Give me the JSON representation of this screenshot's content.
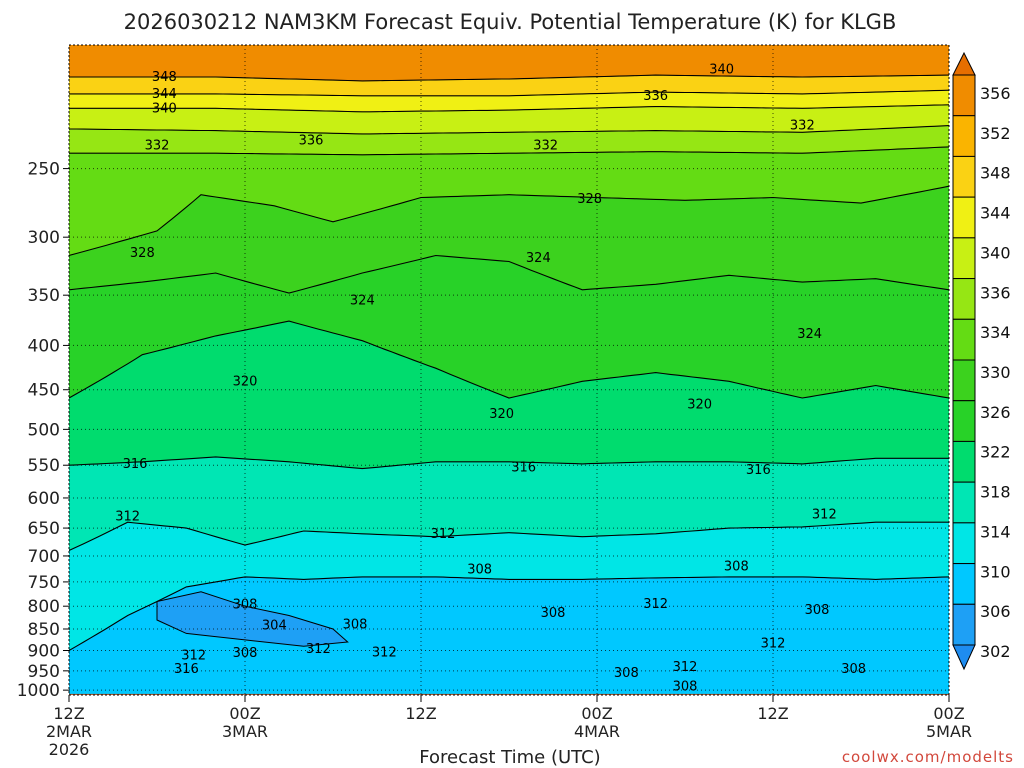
{
  "chart_data": {
    "type": "heatmap",
    "title": "2026030212 NAM3KM Forecast Equiv. Potential Temperature (K) for KLGB",
    "xlabel": "Forecast Time (UTC)",
    "ylabel": "",
    "y_scale": "log-pressure",
    "y_inverted": true,
    "ylim": [
      1000,
      180
    ],
    "x_ticks": [
      {
        "hour": 0,
        "lines": [
          "12Z",
          "2MAR",
          "2026"
        ]
      },
      {
        "hour": 12,
        "lines": [
          "00Z",
          "3MAR"
        ]
      },
      {
        "hour": 24,
        "lines": [
          "12Z"
        ]
      },
      {
        "hour": 36,
        "lines": [
          "00Z",
          "4MAR"
        ]
      },
      {
        "hour": 48,
        "lines": [
          "12Z"
        ]
      },
      {
        "hour": 60,
        "lines": [
          "00Z",
          "5MAR"
        ]
      }
    ],
    "xlim": [
      0,
      60
    ],
    "y_ticks": [
      250,
      300,
      350,
      400,
      450,
      500,
      550,
      600,
      650,
      700,
      750,
      800,
      850,
      900,
      950,
      1000
    ],
    "grid": true,
    "colorbar": {
      "levels": [
        302,
        306,
        310,
        314,
        318,
        322,
        326,
        330,
        334,
        336,
        340,
        344,
        348,
        352,
        356
      ],
      "colors": [
        "#1e8cf0",
        "#1ea0f5",
        "#00c8ff",
        "#00e6e6",
        "#00e6b4",
        "#00dc6e",
        "#28d228",
        "#3cd21e",
        "#64dc14",
        "#96e614",
        "#c8f014",
        "#f0f014",
        "#fad214",
        "#fab400",
        "#f08c00",
        "#e66e00"
      ]
    },
    "series": [
      {
        "value": 348,
        "points": [
          [
            0,
            196
          ],
          [
            10,
            196
          ],
          [
            20,
            198
          ],
          [
            30,
            197
          ],
          [
            40,
            195
          ],
          [
            50,
            196
          ],
          [
            60,
            195
          ]
        ]
      },
      {
        "value": 344,
        "points": [
          [
            0,
            205
          ],
          [
            10,
            205
          ],
          [
            20,
            206
          ],
          [
            30,
            206
          ],
          [
            40,
            204
          ],
          [
            50,
            205
          ],
          [
            60,
            203
          ]
        ]
      },
      {
        "value": 340,
        "points": [
          [
            0,
            213
          ],
          [
            10,
            213
          ],
          [
            20,
            215
          ],
          [
            30,
            214
          ],
          [
            40,
            212
          ],
          [
            50,
            213
          ],
          [
            60,
            211
          ]
        ]
      },
      {
        "value": 336,
        "points": [
          [
            0,
            225
          ],
          [
            10,
            226
          ],
          [
            20,
            228
          ],
          [
            30,
            227
          ],
          [
            40,
            226
          ],
          [
            50,
            227
          ],
          [
            60,
            223
          ]
        ]
      },
      {
        "value": 332,
        "points": [
          [
            0,
            240
          ],
          [
            10,
            240
          ],
          [
            20,
            241
          ],
          [
            30,
            240
          ],
          [
            40,
            239
          ],
          [
            50,
            240
          ],
          [
            60,
            236
          ]
        ]
      },
      {
        "value": 328,
        "points": [
          [
            0,
            315
          ],
          [
            6,
            295
          ],
          [
            9,
            268
          ],
          [
            14,
            276
          ],
          [
            18,
            288
          ],
          [
            24,
            270
          ],
          [
            30,
            268
          ],
          [
            36,
            270
          ],
          [
            42,
            272
          ],
          [
            48,
            270
          ],
          [
            54,
            274
          ],
          [
            60,
            262
          ]
        ]
      },
      {
        "value": 324,
        "points": [
          [
            0,
            345
          ],
          [
            5,
            338
          ],
          [
            10,
            330
          ],
          [
            15,
            348
          ],
          [
            20,
            330
          ],
          [
            25,
            315
          ],
          [
            30,
            320
          ],
          [
            35,
            345
          ],
          [
            40,
            340
          ],
          [
            45,
            332
          ],
          [
            50,
            338
          ],
          [
            55,
            335
          ],
          [
            60,
            345
          ]
        ]
      },
      {
        "value": 320,
        "points": [
          [
            0,
            460
          ],
          [
            5,
            410
          ],
          [
            10,
            390
          ],
          [
            15,
            375
          ],
          [
            20,
            395
          ],
          [
            25,
            425
          ],
          [
            30,
            460
          ],
          [
            35,
            440
          ],
          [
            40,
            430
          ],
          [
            45,
            440
          ],
          [
            50,
            460
          ],
          [
            55,
            445
          ],
          [
            60,
            460
          ]
        ]
      },
      {
        "value": 316,
        "points": [
          [
            0,
            550
          ],
          [
            5,
            545
          ],
          [
            10,
            538
          ],
          [
            15,
            545
          ],
          [
            20,
            555
          ],
          [
            25,
            545
          ],
          [
            30,
            545
          ],
          [
            35,
            548
          ],
          [
            40,
            545
          ],
          [
            45,
            545
          ],
          [
            50,
            548
          ],
          [
            55,
            540
          ],
          [
            60,
            540
          ]
        ]
      },
      {
        "value": 312,
        "points": [
          [
            0,
            690
          ],
          [
            4,
            640
          ],
          [
            8,
            650
          ],
          [
            12,
            680
          ],
          [
            16,
            655
          ],
          [
            20,
            660
          ],
          [
            25,
            665
          ],
          [
            30,
            658
          ],
          [
            35,
            665
          ],
          [
            40,
            660
          ],
          [
            45,
            650
          ],
          [
            50,
            648
          ],
          [
            55,
            640
          ],
          [
            60,
            640
          ]
        ]
      },
      {
        "value": 308,
        "points": [
          [
            0,
            900
          ],
          [
            4,
            820
          ],
          [
            8,
            760
          ],
          [
            12,
            740
          ],
          [
            16,
            745
          ],
          [
            20,
            740
          ],
          [
            25,
            740
          ],
          [
            30,
            745
          ],
          [
            35,
            745
          ],
          [
            40,
            742
          ],
          [
            45,
            740
          ],
          [
            50,
            740
          ],
          [
            55,
            745
          ],
          [
            60,
            740
          ]
        ]
      }
    ],
    "contour_labels": [
      {
        "text": "348",
        "hour": 6.5,
        "p": 196
      },
      {
        "text": "344",
        "hour": 6.5,
        "p": 205
      },
      {
        "text": "340",
        "hour": 6.5,
        "p": 213
      },
      {
        "text": "340",
        "hour": 44.5,
        "p": 192
      },
      {
        "text": "336",
        "hour": 16.5,
        "p": 232
      },
      {
        "text": "336",
        "hour": 40.0,
        "p": 206
      },
      {
        "text": "332",
        "hour": 6.0,
        "p": 235
      },
      {
        "text": "332",
        "hour": 32.5,
        "p": 235
      },
      {
        "text": "332",
        "hour": 50.0,
        "p": 223
      },
      {
        "text": "328",
        "hour": 5.0,
        "p": 313
      },
      {
        "text": "328",
        "hour": 35.5,
        "p": 271
      },
      {
        "text": "324",
        "hour": 20.0,
        "p": 355
      },
      {
        "text": "324",
        "hour": 32.0,
        "p": 317
      },
      {
        "text": "324",
        "hour": 50.5,
        "p": 388
      },
      {
        "text": "320",
        "hour": 12.0,
        "p": 440
      },
      {
        "text": "320",
        "hour": 29.5,
        "p": 480
      },
      {
        "text": "320",
        "hour": 43.0,
        "p": 468
      },
      {
        "text": "316",
        "hour": 4.5,
        "p": 548
      },
      {
        "text": "316",
        "hour": 31.0,
        "p": 553
      },
      {
        "text": "316",
        "hour": 47.0,
        "p": 557
      },
      {
        "text": "312",
        "hour": 4.0,
        "p": 630
      },
      {
        "text": "312",
        "hour": 25.5,
        "p": 660
      },
      {
        "text": "312",
        "hour": 51.5,
        "p": 627
      },
      {
        "text": "312",
        "hour": 40.0,
        "p": 795
      },
      {
        "text": "312",
        "hour": 8.5,
        "p": 912
      },
      {
        "text": "312",
        "hour": 17.0,
        "p": 896
      },
      {
        "text": "312",
        "hour": 21.5,
        "p": 905
      },
      {
        "text": "312",
        "hour": 48.0,
        "p": 883
      },
      {
        "text": "312",
        "hour": 42.0,
        "p": 940
      },
      {
        "text": "308",
        "hour": 28.0,
        "p": 726
      },
      {
        "text": "308",
        "hour": 45.5,
        "p": 720
      },
      {
        "text": "308",
        "hour": 12.0,
        "p": 796
      },
      {
        "text": "308",
        "hour": 19.5,
        "p": 840
      },
      {
        "text": "308",
        "hour": 33.0,
        "p": 815
      },
      {
        "text": "308",
        "hour": 51.0,
        "p": 808
      },
      {
        "text": "308",
        "hour": 12.0,
        "p": 906
      },
      {
        "text": "308",
        "hour": 38.0,
        "p": 955
      },
      {
        "text": "308",
        "hour": 53.5,
        "p": 945
      },
      {
        "text": "308",
        "hour": 42.0,
        "p": 990
      },
      {
        "text": "316",
        "hour": 8.0,
        "p": 945
      },
      {
        "text": "304",
        "hour": 14.0,
        "p": 842
      }
    ],
    "low_region": [
      [
        6,
        790
      ],
      [
        9,
        770
      ],
      [
        12,
        800
      ],
      [
        15,
        820
      ],
      [
        18,
        850
      ],
      [
        19,
        880
      ],
      [
        16,
        890
      ],
      [
        12,
        875
      ],
      [
        8,
        860
      ],
      [
        6,
        830
      ]
    ],
    "ground_hpa": 1010
  },
  "credit": "coolwx.com/modelts"
}
